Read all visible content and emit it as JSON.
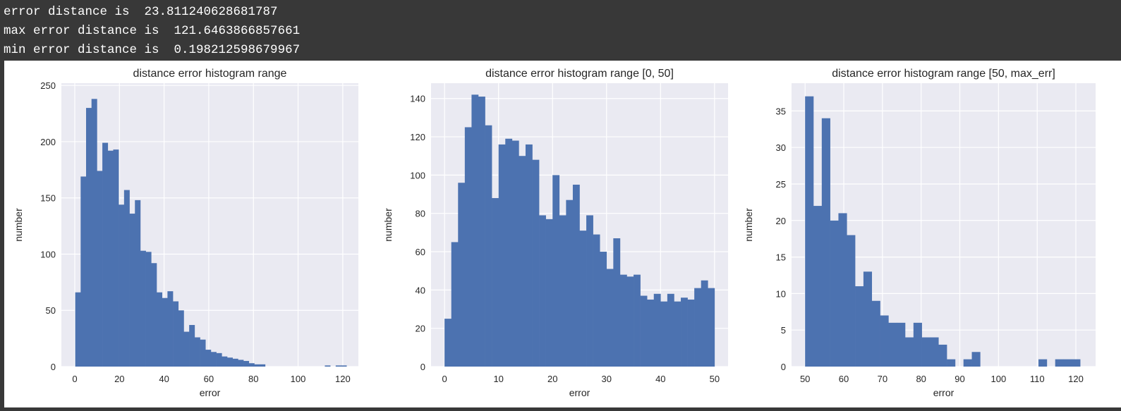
{
  "console": {
    "lines": [
      "error distance is  23.811240628681787",
      "max error distance is  121.6463866857661",
      "min error distance is  0.198212598679967"
    ]
  },
  "colors": {
    "console_bg": "#383838",
    "console_text": "#ffffff",
    "figure_bg": "#ffffff",
    "axes_bg": "#eaeaf2",
    "grid": "#ffffff",
    "bar": "#4c72b0",
    "text": "#262626"
  },
  "chart_data": [
    {
      "type": "bar",
      "title": "distance error histogram range",
      "xlabel": "error",
      "ylabel": "number",
      "xlim": [
        -6,
        127
      ],
      "ylim": [
        0,
        252
      ],
      "xticks": [
        0,
        20,
        40,
        60,
        80,
        100,
        120
      ],
      "yticks": [
        0,
        50,
        100,
        150,
        200,
        250
      ],
      "grid": true,
      "bin_start": 0.2,
      "bin_width": 2.43,
      "values": [
        66,
        169,
        230,
        238,
        174,
        199,
        192,
        193,
        144,
        157,
        136,
        148,
        103,
        102,
        92,
        66,
        61,
        67,
        58,
        50,
        31,
        37,
        26,
        24,
        15,
        13,
        12,
        9,
        8,
        7,
        6,
        5,
        3,
        2,
        2,
        0,
        0,
        0,
        0,
        0,
        0,
        0,
        0,
        0,
        0,
        0,
        1,
        0,
        1,
        1
      ]
    },
    {
      "type": "bar",
      "title": "distance error histogram range [0, 50]",
      "xlabel": "error",
      "ylabel": "number",
      "xlim": [
        -2.5,
        52.5
      ],
      "ylim": [
        0,
        148
      ],
      "xticks": [
        0,
        10,
        20,
        30,
        40,
        50
      ],
      "yticks": [
        0,
        20,
        40,
        60,
        80,
        100,
        120,
        140
      ],
      "grid": true,
      "bin_start": 0,
      "bin_width": 1.25,
      "values": [
        25,
        65,
        96,
        125,
        142,
        141,
        126,
        88,
        116,
        119,
        118,
        110,
        116,
        108,
        79,
        77,
        100,
        79,
        87,
        95,
        71,
        79,
        69,
        60,
        51,
        67,
        48,
        47,
        48,
        37,
        35,
        38,
        34,
        38,
        34,
        36,
        35,
        41,
        45,
        41
      ]
    },
    {
      "type": "bar",
      "title": "distance error histogram range [50, max_err]",
      "xlabel": "error",
      "ylabel": "number",
      "xlim": [
        46.5,
        125.1
      ],
      "ylim": [
        0,
        38.8
      ],
      "xticks": [
        50,
        60,
        70,
        80,
        90,
        100,
        110,
        120
      ],
      "yticks": [
        0,
        5,
        10,
        15,
        20,
        25,
        30,
        35
      ],
      "grid": true,
      "bin_start": 50,
      "bin_width": 2.155,
      "values": [
        37,
        22,
        34,
        20,
        21,
        18,
        11,
        13,
        9,
        7,
        6,
        6,
        4,
        6,
        4,
        4,
        3,
        1,
        0,
        1,
        2,
        0,
        0,
        0,
        0,
        0,
        0,
        0,
        1,
        0,
        1,
        1,
        1
      ]
    }
  ]
}
